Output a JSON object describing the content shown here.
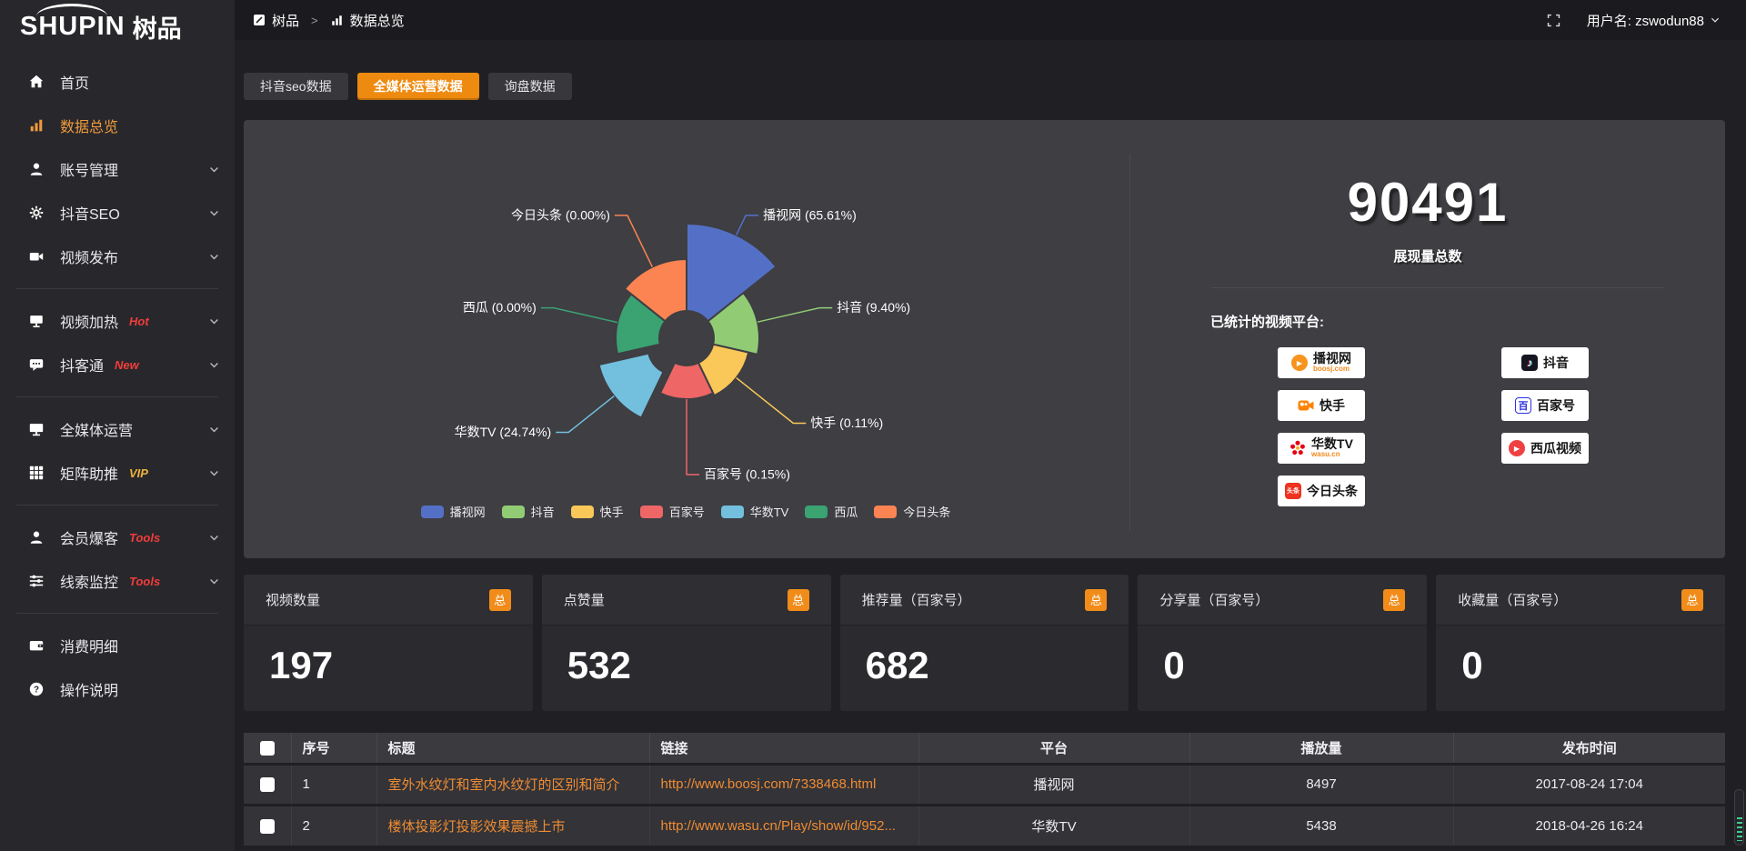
{
  "brand": {
    "name": "SHUPIN",
    "suffix": "树品"
  },
  "header": {
    "breadcrumb": [
      {
        "label": "树品"
      },
      {
        "label": "数据总览"
      }
    ],
    "separator": ">",
    "user_label": "用户名: zswodun88"
  },
  "sidebar": {
    "items": [
      {
        "id": "home",
        "label": "首页",
        "icon": "home"
      },
      {
        "id": "data-overview",
        "label": "数据总览",
        "icon": "chart",
        "active": true
      },
      {
        "id": "account-manage",
        "label": "账号管理",
        "icon": "user",
        "chevron": true
      },
      {
        "id": "douyin-seo",
        "label": "抖音SEO",
        "icon": "gear",
        "chevron": true
      },
      {
        "id": "video-publish",
        "label": "视频发布",
        "icon": "video",
        "chevron": true
      },
      {
        "divider": true
      },
      {
        "id": "video-heat",
        "label": "视频加热",
        "icon": "heat",
        "badge": "Hot",
        "badge_color": "#f23c3c",
        "chevron": true
      },
      {
        "id": "douketong",
        "label": "抖客通",
        "icon": "chat",
        "badge": "New",
        "badge_color": "#f23c3c",
        "chevron": true
      },
      {
        "divider": true
      },
      {
        "id": "media-operation",
        "label": "全媒体运营",
        "icon": "monitor",
        "chevron": true
      },
      {
        "id": "matrix-boost",
        "label": "矩阵助推",
        "icon": "grid",
        "badge": "VIP",
        "badge_color": "#edb23c",
        "chevron": true
      },
      {
        "divider": true
      },
      {
        "id": "member-baoke",
        "label": "会员爆客",
        "icon": "user-solid",
        "badge": "Tools",
        "badge_color": "#f23c3c",
        "chevron": true
      },
      {
        "id": "clue-monitor",
        "label": "线索监控",
        "icon": "sliders",
        "badge": "Tools",
        "badge_color": "#f23c3c",
        "chevron": true
      },
      {
        "divider": true
      },
      {
        "id": "consume-detail",
        "label": "消费明细",
        "icon": "wallet"
      },
      {
        "id": "operation-guide",
        "label": "操作说明",
        "icon": "question"
      }
    ]
  },
  "tabs": [
    {
      "id": "douyin-seo-data",
      "label": "抖音seo数据",
      "active": false
    },
    {
      "id": "media-operation-data",
      "label": "全媒体运营数据",
      "active": true
    },
    {
      "id": "inquiry-data",
      "label": "询盘数据",
      "active": false
    }
  ],
  "chart_data": {
    "type": "pie",
    "variant": "nightingale-rose-donut",
    "legend_position": "bottom",
    "inner_radius": 30,
    "slices": [
      {
        "name": "播视网",
        "percent": 65.61,
        "label": "播视网 (65.61%)",
        "color": "#5470c6",
        "radius": 126
      },
      {
        "name": "抖音",
        "percent": 9.4,
        "label": "抖音 (9.40%)",
        "color": "#91cc75",
        "radius": 80
      },
      {
        "name": "快手",
        "percent": 0.11,
        "label": "快手 (0.11%)",
        "color": "#fac858",
        "radius": 70
      },
      {
        "name": "百家号",
        "percent": 0.15,
        "label": "百家号 (0.15%)",
        "color": "#ee6666",
        "radius": 67
      },
      {
        "name": "华数TV",
        "percent": 24.74,
        "label": "华数TV (24.74%)",
        "color": "#73c0de",
        "radius": 86,
        "offset": 16
      },
      {
        "name": "西瓜",
        "percent": 0.0,
        "label": "西瓜 (0.00%)",
        "color": "#3ba272",
        "radius": 78
      },
      {
        "name": "今日头条",
        "percent": 0.0,
        "label": "今日头条 (0.00%)",
        "color": "#fc8452",
        "radius": 87
      }
    ]
  },
  "overview": {
    "total_value": "90491",
    "total_label": "展现量总数",
    "platforms_title": "已统计的视频平台:",
    "platform_badges_left": [
      {
        "name": "播视网",
        "sub": "boosj.com",
        "logo": "boosj"
      },
      {
        "name": "快手",
        "sub": "",
        "logo": "kuaishou"
      },
      {
        "name": "华数TV",
        "sub": "wasu.cn",
        "logo": "wasu"
      },
      {
        "name": "今日头条",
        "sub": "",
        "logo": "toutiao"
      }
    ],
    "platform_badges_right": [
      {
        "name": "抖音",
        "sub": "",
        "logo": "douyin"
      },
      {
        "name": "百家号",
        "sub": "",
        "logo": "baijia"
      },
      {
        "name": "西瓜视频",
        "sub": "",
        "logo": "xigua"
      }
    ]
  },
  "stat_cards": [
    {
      "label": "视频数量",
      "badge": "总",
      "value": "197"
    },
    {
      "label": "点赞量",
      "badge": "总",
      "value": "532"
    },
    {
      "label": "推荐量（百家号）",
      "badge": "总",
      "value": "682"
    },
    {
      "label": "分享量（百家号）",
      "badge": "总",
      "value": "0"
    },
    {
      "label": "收藏量（百家号）",
      "badge": "总",
      "value": "0"
    }
  ],
  "table": {
    "headers": [
      "序号",
      "标题",
      "链接",
      "平台",
      "播放量",
      "发布时间"
    ],
    "rows": [
      {
        "num": "1",
        "title": "室外水纹灯和室内水纹灯的区别和简介",
        "link": "http://www.boosj.com/7338468.html",
        "platform": "播视网",
        "plays": "8497",
        "time": "2017-08-24 17:04"
      },
      {
        "num": "2",
        "title": "楼体投影灯投影效果震撼上市",
        "link": "http://www.wasu.cn/Play/show/id/952...",
        "platform": "华数TV",
        "plays": "5438",
        "time": "2018-04-26 16:24"
      }
    ]
  },
  "colors": {
    "accent": "#ee8a10",
    "link": "#f08c32",
    "hot": "#f23c3c",
    "vip": "#edb23c",
    "panel": "#3e3e43"
  }
}
